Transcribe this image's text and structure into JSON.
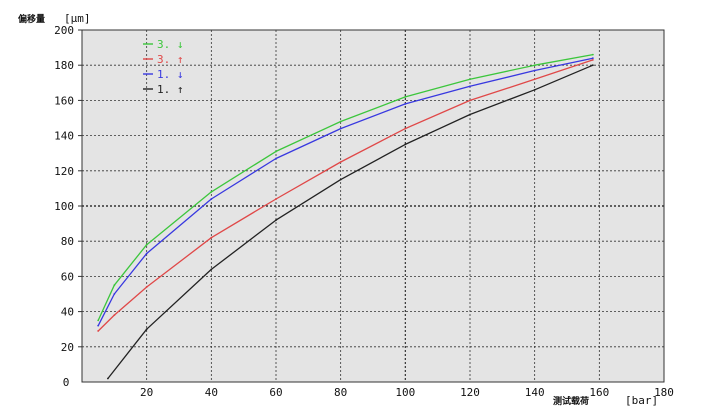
{
  "chart_data": {
    "type": "line",
    "title": "",
    "ylabel": "偏移量",
    "yunit": "[µm]",
    "xlabel": "测试载荷",
    "xunit": "[bar]",
    "xlim": [
      0,
      180
    ],
    "ylim": [
      0,
      200
    ],
    "xticks": [
      0,
      20,
      40,
      60,
      80,
      100,
      120,
      140,
      160,
      180
    ],
    "yticks": [
      20,
      40,
      60,
      80,
      100,
      120,
      140,
      160,
      180,
      200
    ],
    "x_origin_label": "0",
    "grid": true,
    "legend_position": "top-left",
    "series": [
      {
        "name": "3. ↓",
        "color": "#3cc63c",
        "x": [
          5,
          10,
          20,
          40,
          60,
          80,
          100,
          120,
          140,
          158
        ],
        "y": [
          35,
          55,
          78,
          108,
          131,
          148,
          162,
          172,
          180,
          186
        ]
      },
      {
        "name": "3. ↑",
        "color": "#e04848",
        "x": [
          5,
          10,
          20,
          40,
          60,
          80,
          100,
          120,
          140,
          158
        ],
        "y": [
          29,
          38,
          54,
          82,
          104,
          125,
          144,
          160,
          172,
          183
        ]
      },
      {
        "name": "1. ↓",
        "color": "#3838e0",
        "x": [
          5,
          10,
          20,
          40,
          60,
          80,
          100,
          120,
          140,
          158
        ],
        "y": [
          32,
          50,
          73,
          104,
          127,
          144,
          158,
          168,
          177,
          184
        ]
      },
      {
        "name": "1. ↑",
        "color": "#222222",
        "x": [
          8,
          20,
          40,
          60,
          80,
          100,
          120,
          140,
          158
        ],
        "y": [
          2,
          30,
          64,
          92,
          115,
          135,
          152,
          166,
          180
        ]
      }
    ]
  }
}
